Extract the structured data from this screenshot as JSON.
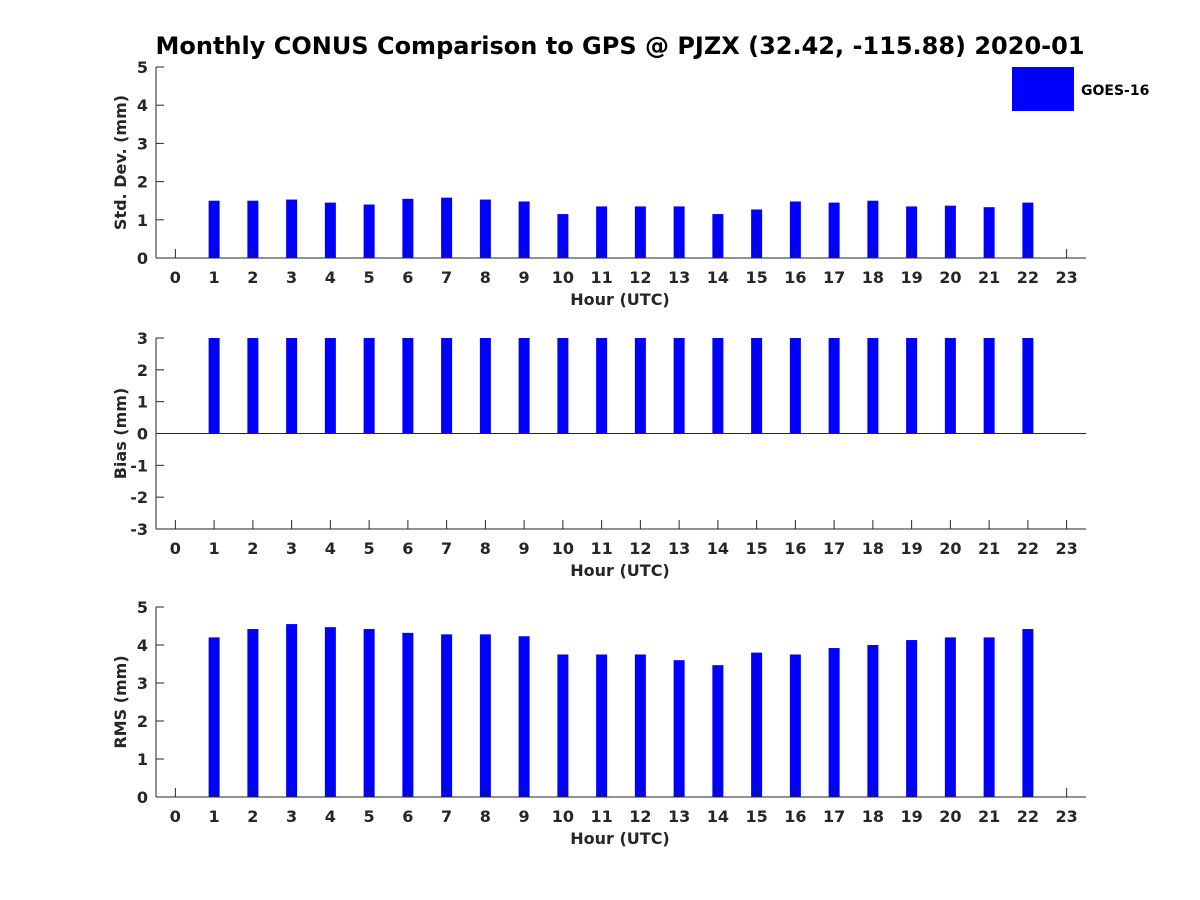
{
  "title": "Monthly CONUS Comparison to GPS @ PJZX (32.42, -115.88) 2020-01",
  "legend": {
    "label": "GOES-16",
    "color": "#0000ff"
  },
  "chart_data": [
    {
      "type": "bar",
      "xlabel": "Hour (UTC)",
      "ylabel": "Std. Dev. (mm)",
      "ylim": [
        0,
        5
      ],
      "yticks": [
        0,
        1,
        2,
        3,
        4,
        5
      ],
      "xlim": [
        -0.5,
        23.5
      ],
      "categories": [
        0,
        1,
        2,
        3,
        4,
        5,
        6,
        7,
        8,
        9,
        10,
        11,
        12,
        13,
        14,
        15,
        16,
        17,
        18,
        19,
        20,
        21,
        22,
        23
      ],
      "series": [
        {
          "name": "GOES-16",
          "values": [
            null,
            1.5,
            1.5,
            1.53,
            1.45,
            1.4,
            1.55,
            1.58,
            1.53,
            1.48,
            1.15,
            1.35,
            1.35,
            1.35,
            1.15,
            1.27,
            1.48,
            1.45,
            1.5,
            1.35,
            1.37,
            1.33,
            1.45,
            null
          ]
        }
      ]
    },
    {
      "type": "bar",
      "xlabel": "Hour (UTC)",
      "ylabel": "Bias (mm)",
      "ylim": [
        -3,
        3
      ],
      "yticks": [
        -3,
        -2,
        -1,
        0,
        1,
        2,
        3
      ],
      "xlim": [
        -0.5,
        23.5
      ],
      "categories": [
        0,
        1,
        2,
        3,
        4,
        5,
        6,
        7,
        8,
        9,
        10,
        11,
        12,
        13,
        14,
        15,
        16,
        17,
        18,
        19,
        20,
        21,
        22,
        23
      ],
      "series": [
        {
          "name": "GOES-16",
          "values": [
            null,
            3,
            3,
            3,
            3,
            3,
            3,
            3,
            3,
            3,
            3,
            3,
            3,
            3,
            3,
            3,
            3,
            3,
            3,
            3,
            3,
            3,
            3,
            null
          ]
        }
      ]
    },
    {
      "type": "bar",
      "xlabel": "Hour (UTC)",
      "ylabel": "RMS (mm)",
      "ylim": [
        0,
        5
      ],
      "yticks": [
        0,
        1,
        2,
        3,
        4,
        5
      ],
      "xlim": [
        -0.5,
        23.5
      ],
      "categories": [
        0,
        1,
        2,
        3,
        4,
        5,
        6,
        7,
        8,
        9,
        10,
        11,
        12,
        13,
        14,
        15,
        16,
        17,
        18,
        19,
        20,
        21,
        22,
        23
      ],
      "series": [
        {
          "name": "GOES-16",
          "values": [
            null,
            4.2,
            4.42,
            4.55,
            4.47,
            4.42,
            4.32,
            4.28,
            4.28,
            4.23,
            3.75,
            3.75,
            3.75,
            3.6,
            3.47,
            3.8,
            3.75,
            3.92,
            4.0,
            4.13,
            4.2,
            4.2,
            4.42,
            null
          ]
        }
      ]
    }
  ]
}
